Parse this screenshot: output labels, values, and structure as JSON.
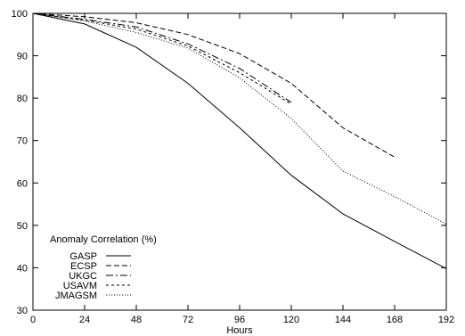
{
  "chart_data": {
    "type": "line",
    "xlabel": "Hours",
    "ylabel": "",
    "xlim": [
      0,
      192
    ],
    "ylim": [
      30,
      100
    ],
    "xticks": [
      0,
      24,
      48,
      72,
      96,
      120,
      144,
      168,
      192
    ],
    "yticks": [
      30,
      40,
      50,
      60,
      70,
      80,
      90,
      100
    ],
    "grid": false,
    "legend_title": "Anomaly Correlation (%)",
    "legend_position": "bottom-left",
    "series": [
      {
        "name": "GASP",
        "style": "solid",
        "x": [
          0,
          24,
          48,
          72,
          96,
          120,
          144,
          168,
          192
        ],
        "values": [
          100,
          97.5,
          92,
          83.5,
          73,
          61.8,
          52.7,
          46.2,
          39.8
        ]
      },
      {
        "name": "ECSP",
        "style": "dashed",
        "x": [
          0,
          24,
          48,
          72,
          96,
          120,
          144,
          168
        ],
        "values": [
          100,
          99.2,
          97.8,
          95,
          90.5,
          83.5,
          73,
          66.1
        ]
      },
      {
        "name": "UKGC",
        "style": "dashdot",
        "x": [
          0,
          24,
          48,
          72,
          96,
          120
        ],
        "values": [
          100,
          98.6,
          96.8,
          92.8,
          87,
          79
        ]
      },
      {
        "name": "USAVM",
        "style": "shortdash",
        "x": [
          0,
          24,
          48,
          72,
          96,
          120
        ],
        "values": [
          100,
          98.4,
          96.3,
          92.3,
          86,
          78.6
        ]
      },
      {
        "name": "JMAGSM",
        "style": "dotted",
        "x": [
          0,
          24,
          48,
          72,
          96,
          120,
          144,
          168,
          192
        ],
        "values": [
          100,
          98.2,
          95.5,
          91.8,
          84.8,
          75.2,
          62.8,
          56.8,
          50.3
        ]
      }
    ]
  }
}
